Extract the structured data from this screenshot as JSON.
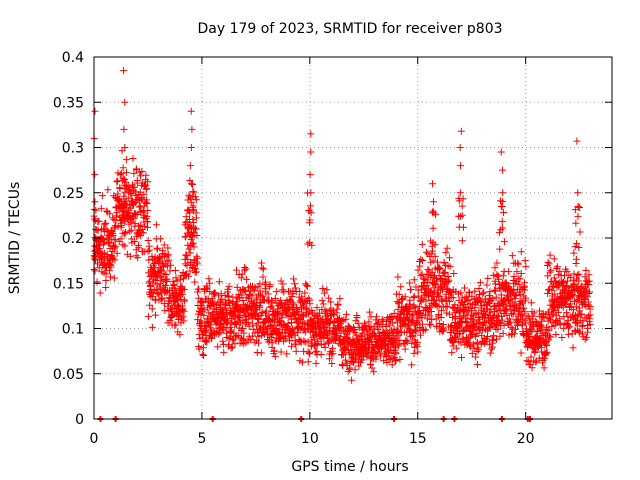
{
  "chart_data": {
    "type": "scatter",
    "title": "Day 179 of 2023, SRMTID for receiver p803",
    "xlabel": "GPS time / hours",
    "ylabel": "SRMTID / TECUs",
    "xlim": [
      0,
      24
    ],
    "ylim": [
      0,
      0.4
    ],
    "xticks": [
      0,
      5,
      10,
      15,
      20
    ],
    "yticks": [
      0,
      0.05,
      0.1,
      0.15,
      0.2,
      0.25,
      0.3,
      0.35,
      0.4
    ],
    "xtick_labels": [
      "0",
      "5",
      "10",
      "15",
      "20"
    ],
    "ytick_labels": [
      "0",
      "0.05",
      "0.1",
      "0.15",
      "0.2",
      "0.25",
      "0.3",
      "0.35",
      "0.4"
    ],
    "grid": true,
    "marker": "plus",
    "color": "#ff0000",
    "time_range_hours": [
      0,
      23
    ],
    "segments": [
      {
        "x0": 0.0,
        "x1": 1.0,
        "center": 0.19,
        "spread": 0.05
      },
      {
        "x0": 1.0,
        "x1": 2.5,
        "center": 0.23,
        "spread": 0.05
      },
      {
        "x0": 2.5,
        "x1": 3.5,
        "center": 0.16,
        "spread": 0.04
      },
      {
        "x0": 3.5,
        "x1": 4.2,
        "center": 0.13,
        "spread": 0.035
      },
      {
        "x0": 4.2,
        "x1": 4.8,
        "center": 0.2,
        "spread": 0.06
      },
      {
        "x0": 4.8,
        "x1": 6.5,
        "center": 0.11,
        "spread": 0.04
      },
      {
        "x0": 6.5,
        "x1": 8.0,
        "center": 0.12,
        "spread": 0.045
      },
      {
        "x0": 8.0,
        "x1": 10.0,
        "center": 0.11,
        "spread": 0.04
      },
      {
        "x0": 10.0,
        "x1": 11.5,
        "center": 0.1,
        "spread": 0.035
      },
      {
        "x0": 11.5,
        "x1": 14.0,
        "center": 0.085,
        "spread": 0.03
      },
      {
        "x0": 14.0,
        "x1": 15.0,
        "center": 0.11,
        "spread": 0.04
      },
      {
        "x0": 15.0,
        "x1": 16.5,
        "center": 0.14,
        "spread": 0.05
      },
      {
        "x0": 16.5,
        "x1": 18.5,
        "center": 0.11,
        "spread": 0.04
      },
      {
        "x0": 18.5,
        "x1": 20.0,
        "center": 0.13,
        "spread": 0.05
      },
      {
        "x0": 20.0,
        "x1": 21.0,
        "center": 0.09,
        "spread": 0.035
      },
      {
        "x0": 21.0,
        "x1": 23.0,
        "center": 0.13,
        "spread": 0.04
      }
    ],
    "spikes": [
      {
        "x": 0.0,
        "ys": [
          0.36,
          0.34,
          0.31,
          0.27,
          0.24
        ]
      },
      {
        "x": 1.4,
        "ys": [
          0.385,
          0.35,
          0.32,
          0.3
        ]
      },
      {
        "x": 4.5,
        "ys": [
          0.34,
          0.32,
          0.3,
          0.28,
          0.26
        ]
      },
      {
        "x": 10.0,
        "ys": [
          0.315,
          0.295,
          0.27,
          0.25
        ]
      },
      {
        "x": 15.7,
        "ys": [
          0.26,
          0.24
        ]
      },
      {
        "x": 17.0,
        "ys": [
          0.318,
          0.3,
          0.28,
          0.25
        ]
      },
      {
        "x": 18.9,
        "ys": [
          0.295,
          0.275,
          0.25
        ]
      },
      {
        "x": 22.4,
        "ys": [
          0.307,
          0.25,
          0.235
        ]
      }
    ],
    "zero_points": [
      0.3,
      1.0,
      5.5,
      9.6,
      13.9,
      16.2,
      16.7,
      18.9,
      20.1,
      20.2
    ]
  }
}
